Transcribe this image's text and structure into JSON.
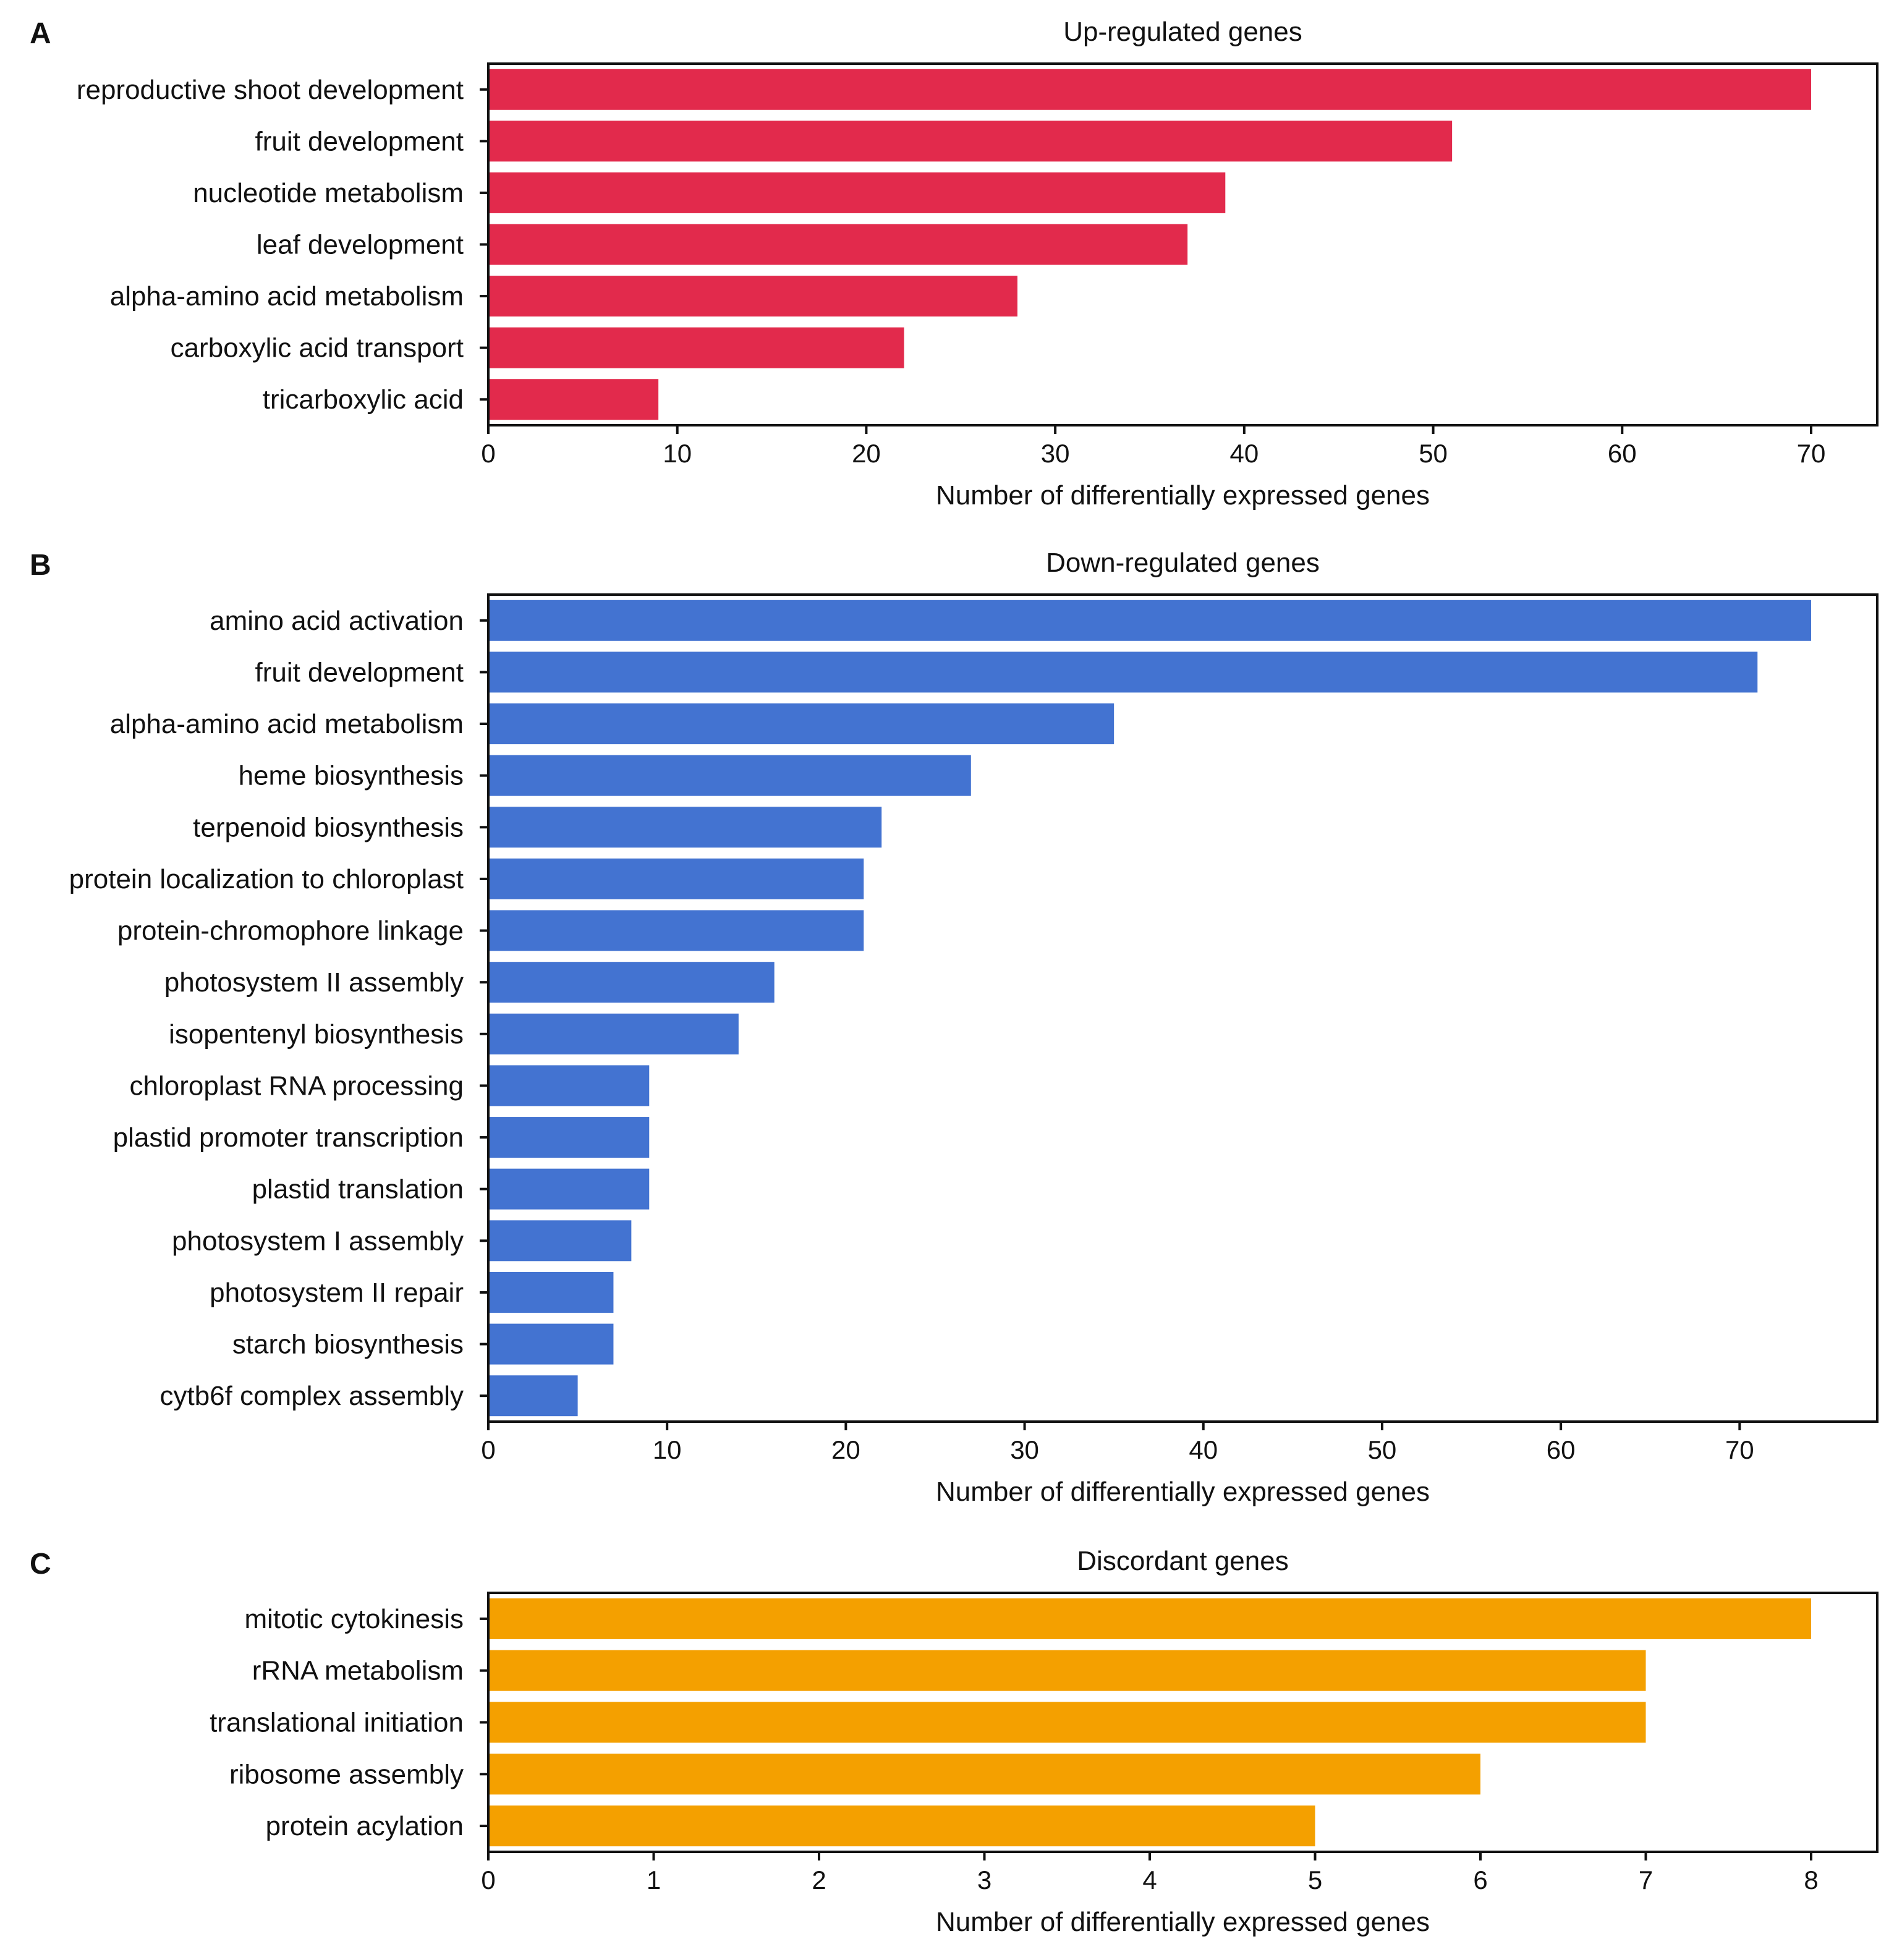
{
  "chart_data": [
    {
      "panel": "A",
      "type": "bar",
      "orientation": "horizontal",
      "title": "Up-regulated genes",
      "xlabel": "Number of differentially expressed genes",
      "ylabel": "",
      "color": "#e22a4c",
      "xlim": [
        0,
        73.5
      ],
      "xticks": [
        0,
        10,
        20,
        30,
        40,
        50,
        60,
        70
      ],
      "categories": [
        "reproductive shoot development",
        "fruit development",
        "nucleotide metabolism ",
        "leaf development",
        "alpha-amino acid metabolism ",
        "carboxylic acid transport",
        "tricarboxylic acid "
      ],
      "values": [
        70,
        51,
        39,
        37,
        28,
        22,
        9
      ],
      "grid": false
    },
    {
      "panel": "B",
      "type": "bar",
      "orientation": "horizontal",
      "title": "Down-regulated genes",
      "xlabel": "Number of differentially expressed genes",
      "ylabel": "",
      "color": "#4373d1",
      "xlim": [
        0,
        77.7
      ],
      "xticks": [
        0,
        10,
        20,
        30,
        40,
        50,
        60,
        70
      ],
      "categories": [
        "amino acid activation",
        "fruit development",
        "alpha-amino acid metabolism ",
        "heme biosynthesis ",
        "terpenoid biosynthesis ",
        "protein localization to chloroplast",
        "protein-chromophore linkage",
        "photosystem II assembly",
        "isopentenyl biosynthesis ",
        "chloroplast RNA processing",
        "plastid promoter transcription",
        "plastid translation",
        "photosystem I assembly",
        "photosystem II repair",
        "starch biosynthesis ",
        "cytb6f complex assembly"
      ],
      "values": [
        74,
        71,
        35,
        27,
        22,
        21,
        21,
        16,
        14,
        9,
        9,
        9,
        8,
        7,
        7,
        5
      ],
      "grid": false
    },
    {
      "panel": "C",
      "type": "bar",
      "orientation": "horizontal",
      "title": "Discordant genes",
      "xlabel": "Number of differentially expressed genes",
      "ylabel": "",
      "color": "#f4a000",
      "xlim": [
        0,
        8.4
      ],
      "xticks": [
        0,
        1,
        2,
        3,
        4,
        5,
        6,
        7,
        8
      ],
      "categories": [
        "mitotic cytokinesis ",
        "rRNA metabolism ",
        "translational initiation",
        "ribosome assembly",
        "protein acylation"
      ],
      "values": [
        8,
        7,
        7,
        6,
        5
      ],
      "grid": false
    }
  ]
}
